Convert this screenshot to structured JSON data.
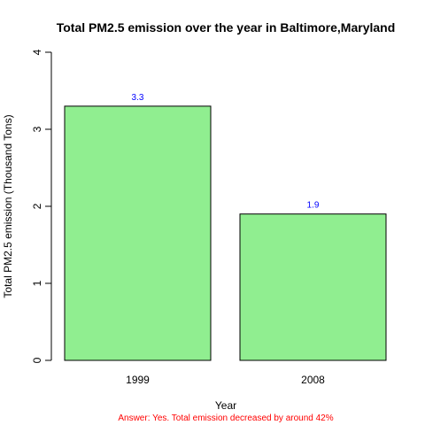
{
  "chart_data": {
    "type": "bar",
    "title": "Total PM2.5 emission over the year in Baltimore,Maryland",
    "xlabel": "Year",
    "ylabel": "Total PM2.5 emission (Thousand Tons)",
    "subtitle": "Answer: Yes. Total emission decreased by around 42%",
    "categories": [
      "1999",
      "2008"
    ],
    "values": [
      3.3,
      1.9
    ],
    "data_labels": [
      "3.3",
      "1.9"
    ],
    "ylim": [
      0,
      4
    ],
    "yticks": [
      0,
      1,
      2,
      3,
      4
    ],
    "grid": false,
    "legend": "none",
    "colors": {
      "bar_fill": "#90ee90",
      "bar_stroke": "#000000",
      "data_label": "#0000ff",
      "subtitle": "#ff0000"
    }
  }
}
